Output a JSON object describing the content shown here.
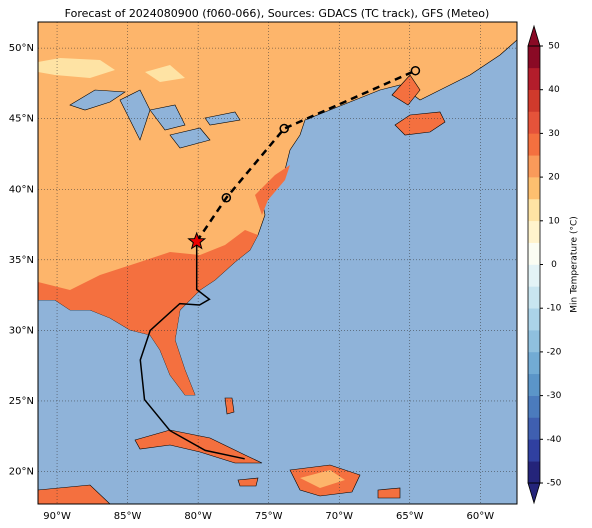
{
  "title": "Forecast of 2024080900 (f060-066), Sources: GDACS (TC track), GFS (Meteo)",
  "map": {
    "xlim": [
      -91.35,
      -57.4
    ],
    "ylim": [
      17.7,
      51.85
    ],
    "xticks": [
      {
        "value": -90,
        "label": "90°W"
      },
      {
        "value": -85,
        "label": "85°W"
      },
      {
        "value": -80,
        "label": "80°W"
      },
      {
        "value": -75,
        "label": "75°W"
      },
      {
        "value": -70,
        "label": "70°W"
      },
      {
        "value": -65,
        "label": "65°W"
      },
      {
        "value": -60,
        "label": "60°W"
      }
    ],
    "yticks": [
      {
        "value": 20,
        "label": "20°N"
      },
      {
        "value": 25,
        "label": "25°N"
      },
      {
        "value": 30,
        "label": "30°N"
      },
      {
        "value": 35,
        "label": "35°N"
      },
      {
        "value": 40,
        "label": "40°N"
      },
      {
        "value": 45,
        "label": "45°N"
      },
      {
        "value": 50,
        "label": "50°N"
      }
    ],
    "grid": true
  },
  "track": {
    "past": {
      "lon": [
        -80.1,
        -80.1,
        -79.2,
        -79.9,
        -81.3,
        -83.4,
        -84.1,
        -83.8,
        -82.0,
        -79.5,
        -76.7
      ],
      "lat": [
        36.3,
        32.9,
        32.2,
        31.8,
        31.9,
        30.0,
        27.9,
        25.1,
        22.9,
        21.5,
        20.9
      ]
    },
    "position": {
      "lon": -80.1,
      "lat": 36.3
    },
    "forecast": {
      "lon": [
        -78.0,
        -73.9,
        -64.6
      ],
      "lat": [
        39.4,
        44.3,
        48.4
      ]
    }
  },
  "colorbar": {
    "label": "Min Temperature (°C)",
    "lim": [
      -50,
      50
    ],
    "ticks": [
      -50,
      -40,
      -30,
      -20,
      -10,
      0,
      10,
      20,
      30,
      40,
      50
    ],
    "colors": [
      "#24247a",
      "#3040a0",
      "#3f5fb0",
      "#4b7bbd",
      "#5b95c8",
      "#72abd4",
      "#8fc0de",
      "#abd3e8",
      "#c8e5f0",
      "#e3f3f6",
      "#fbfdf3",
      "#fff3cc",
      "#fee3a4",
      "#fdbf6f",
      "#f99a5a",
      "#f4703f",
      "#e5533a",
      "#d03a2c",
      "#b31d2b",
      "#8a0a25"
    ]
  }
}
